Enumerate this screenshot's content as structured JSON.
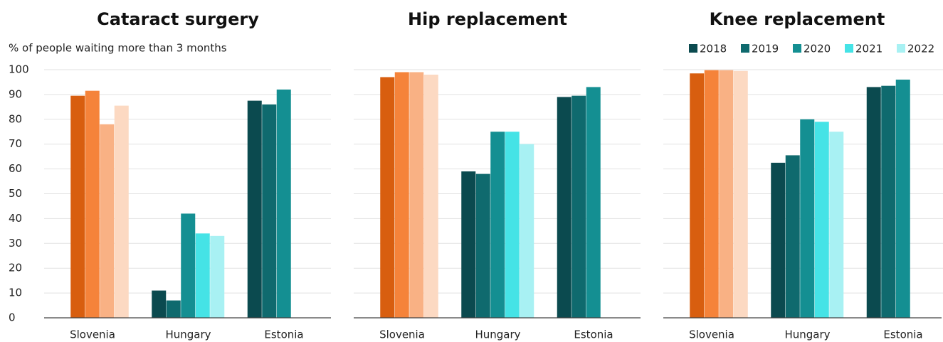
{
  "chart_data": [
    {
      "type": "bar",
      "title": "Cataract surgery",
      "y_label": "% of people waiting more than 3 months",
      "categories": [
        "Slovenia",
        "Hungary",
        "Estonia"
      ],
      "highlight_category": "Slovenia",
      "tick_labels": true,
      "legend": false,
      "grid": true,
      "ylim": [
        0,
        100
      ],
      "yticks": [
        0,
        10,
        20,
        30,
        40,
        50,
        60,
        70,
        80,
        90,
        100
      ],
      "series": [
        {
          "name": "2018",
          "color": "#0b4a4f",
          "highlight_color": null,
          "values": [
            null,
            11,
            87.5
          ]
        },
        {
          "name": "2019",
          "color": "#0f6a6e",
          "highlight_color": "#d85e0f",
          "values": [
            89.5,
            7,
            86
          ]
        },
        {
          "name": "2020",
          "color": "#148f92",
          "highlight_color": "#f5833a",
          "values": [
            91.5,
            42,
            92
          ]
        },
        {
          "name": "2021",
          "color": "#45e3e6",
          "highlight_color": "#f9b184",
          "values": [
            78,
            34,
            null
          ]
        },
        {
          "name": "2022",
          "color": "#a8f1f3",
          "highlight_color": "#fcd9c2",
          "values": [
            85.5,
            33,
            null
          ]
        }
      ]
    },
    {
      "type": "bar",
      "title": "Hip replacement",
      "categories": [
        "Slovenia",
        "Hungary",
        "Estonia"
      ],
      "highlight_category": "Slovenia",
      "tick_labels": false,
      "legend": false,
      "grid": true,
      "ylim": [
        0,
        100
      ],
      "yticks": [
        0,
        10,
        20,
        30,
        40,
        50,
        60,
        70,
        80,
        90,
        100
      ],
      "series": [
        {
          "name": "2018",
          "color": "#0b4a4f",
          "highlight_color": null,
          "values": [
            null,
            59,
            89
          ]
        },
        {
          "name": "2019",
          "color": "#0f6a6e",
          "highlight_color": "#d85e0f",
          "values": [
            97,
            58,
            89.5
          ]
        },
        {
          "name": "2020",
          "color": "#148f92",
          "highlight_color": "#f5833a",
          "values": [
            99,
            75,
            93
          ]
        },
        {
          "name": "2021",
          "color": "#45e3e6",
          "highlight_color": "#f9b184",
          "values": [
            99,
            75,
            null
          ]
        },
        {
          "name": "2022",
          "color": "#a8f1f3",
          "highlight_color": "#fcd9c2",
          "values": [
            98,
            70,
            null
          ]
        }
      ]
    },
    {
      "type": "bar",
      "title": "Knee replacement",
      "categories": [
        "Slovenia",
        "Hungary",
        "Estonia"
      ],
      "highlight_category": "Slovenia",
      "tick_labels": false,
      "legend": true,
      "grid": true,
      "ylim": [
        0,
        100
      ],
      "yticks": [
        0,
        10,
        20,
        30,
        40,
        50,
        60,
        70,
        80,
        90,
        100
      ],
      "series": [
        {
          "name": "2018",
          "color": "#0b4a4f",
          "highlight_color": null,
          "values": [
            null,
            62.5,
            93
          ]
        },
        {
          "name": "2019",
          "color": "#0f6a6e",
          "highlight_color": "#d85e0f",
          "values": [
            98.5,
            65.5,
            93.5
          ]
        },
        {
          "name": "2020",
          "color": "#148f92",
          "highlight_color": "#f5833a",
          "values": [
            99.8,
            80,
            96
          ]
        },
        {
          "name": "2021",
          "color": "#45e3e6",
          "highlight_color": "#f9b184",
          "values": [
            99.8,
            79,
            null
          ]
        },
        {
          "name": "2022",
          "color": "#a8f1f3",
          "highlight_color": "#fcd9c2",
          "values": [
            99.5,
            75,
            null
          ]
        }
      ]
    }
  ]
}
